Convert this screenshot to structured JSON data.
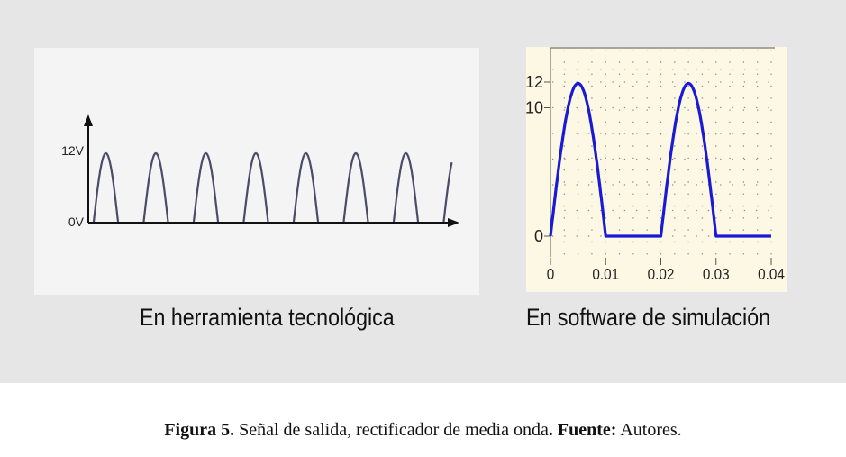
{
  "chart_data": [
    {
      "type": "line",
      "title": "",
      "caption": "En herramienta tecnológica",
      "y_tick_labels": [
        "12V",
        "0V"
      ],
      "signal": "half-wave rectified sine",
      "peak": 12,
      "pulses": 8,
      "ylim": [
        0,
        12
      ],
      "line_color": "#4a4a6a"
    },
    {
      "type": "line",
      "title": "",
      "caption": "En software de simulación",
      "x_tick_labels": [
        "0",
        "0.01",
        "0.02",
        "0.03",
        "0.04"
      ],
      "y_tick_labels": [
        "12",
        "10",
        "0"
      ],
      "x_ticks": [
        0,
        0.01,
        0.02,
        0.03,
        0.04
      ],
      "y_ticks": [
        12,
        10,
        0
      ],
      "xlim": [
        0,
        0.04
      ],
      "period": 0.02,
      "peak": 11.9,
      "signal": "half-wave rectified sine",
      "line_color": "#1a1ad6"
    }
  ],
  "caption": {
    "figure_label": "Figura 5.",
    "description": "Señal de salida, rectificador de media onda",
    "source_label": ". Fuente:",
    "source_value": "Autores."
  }
}
